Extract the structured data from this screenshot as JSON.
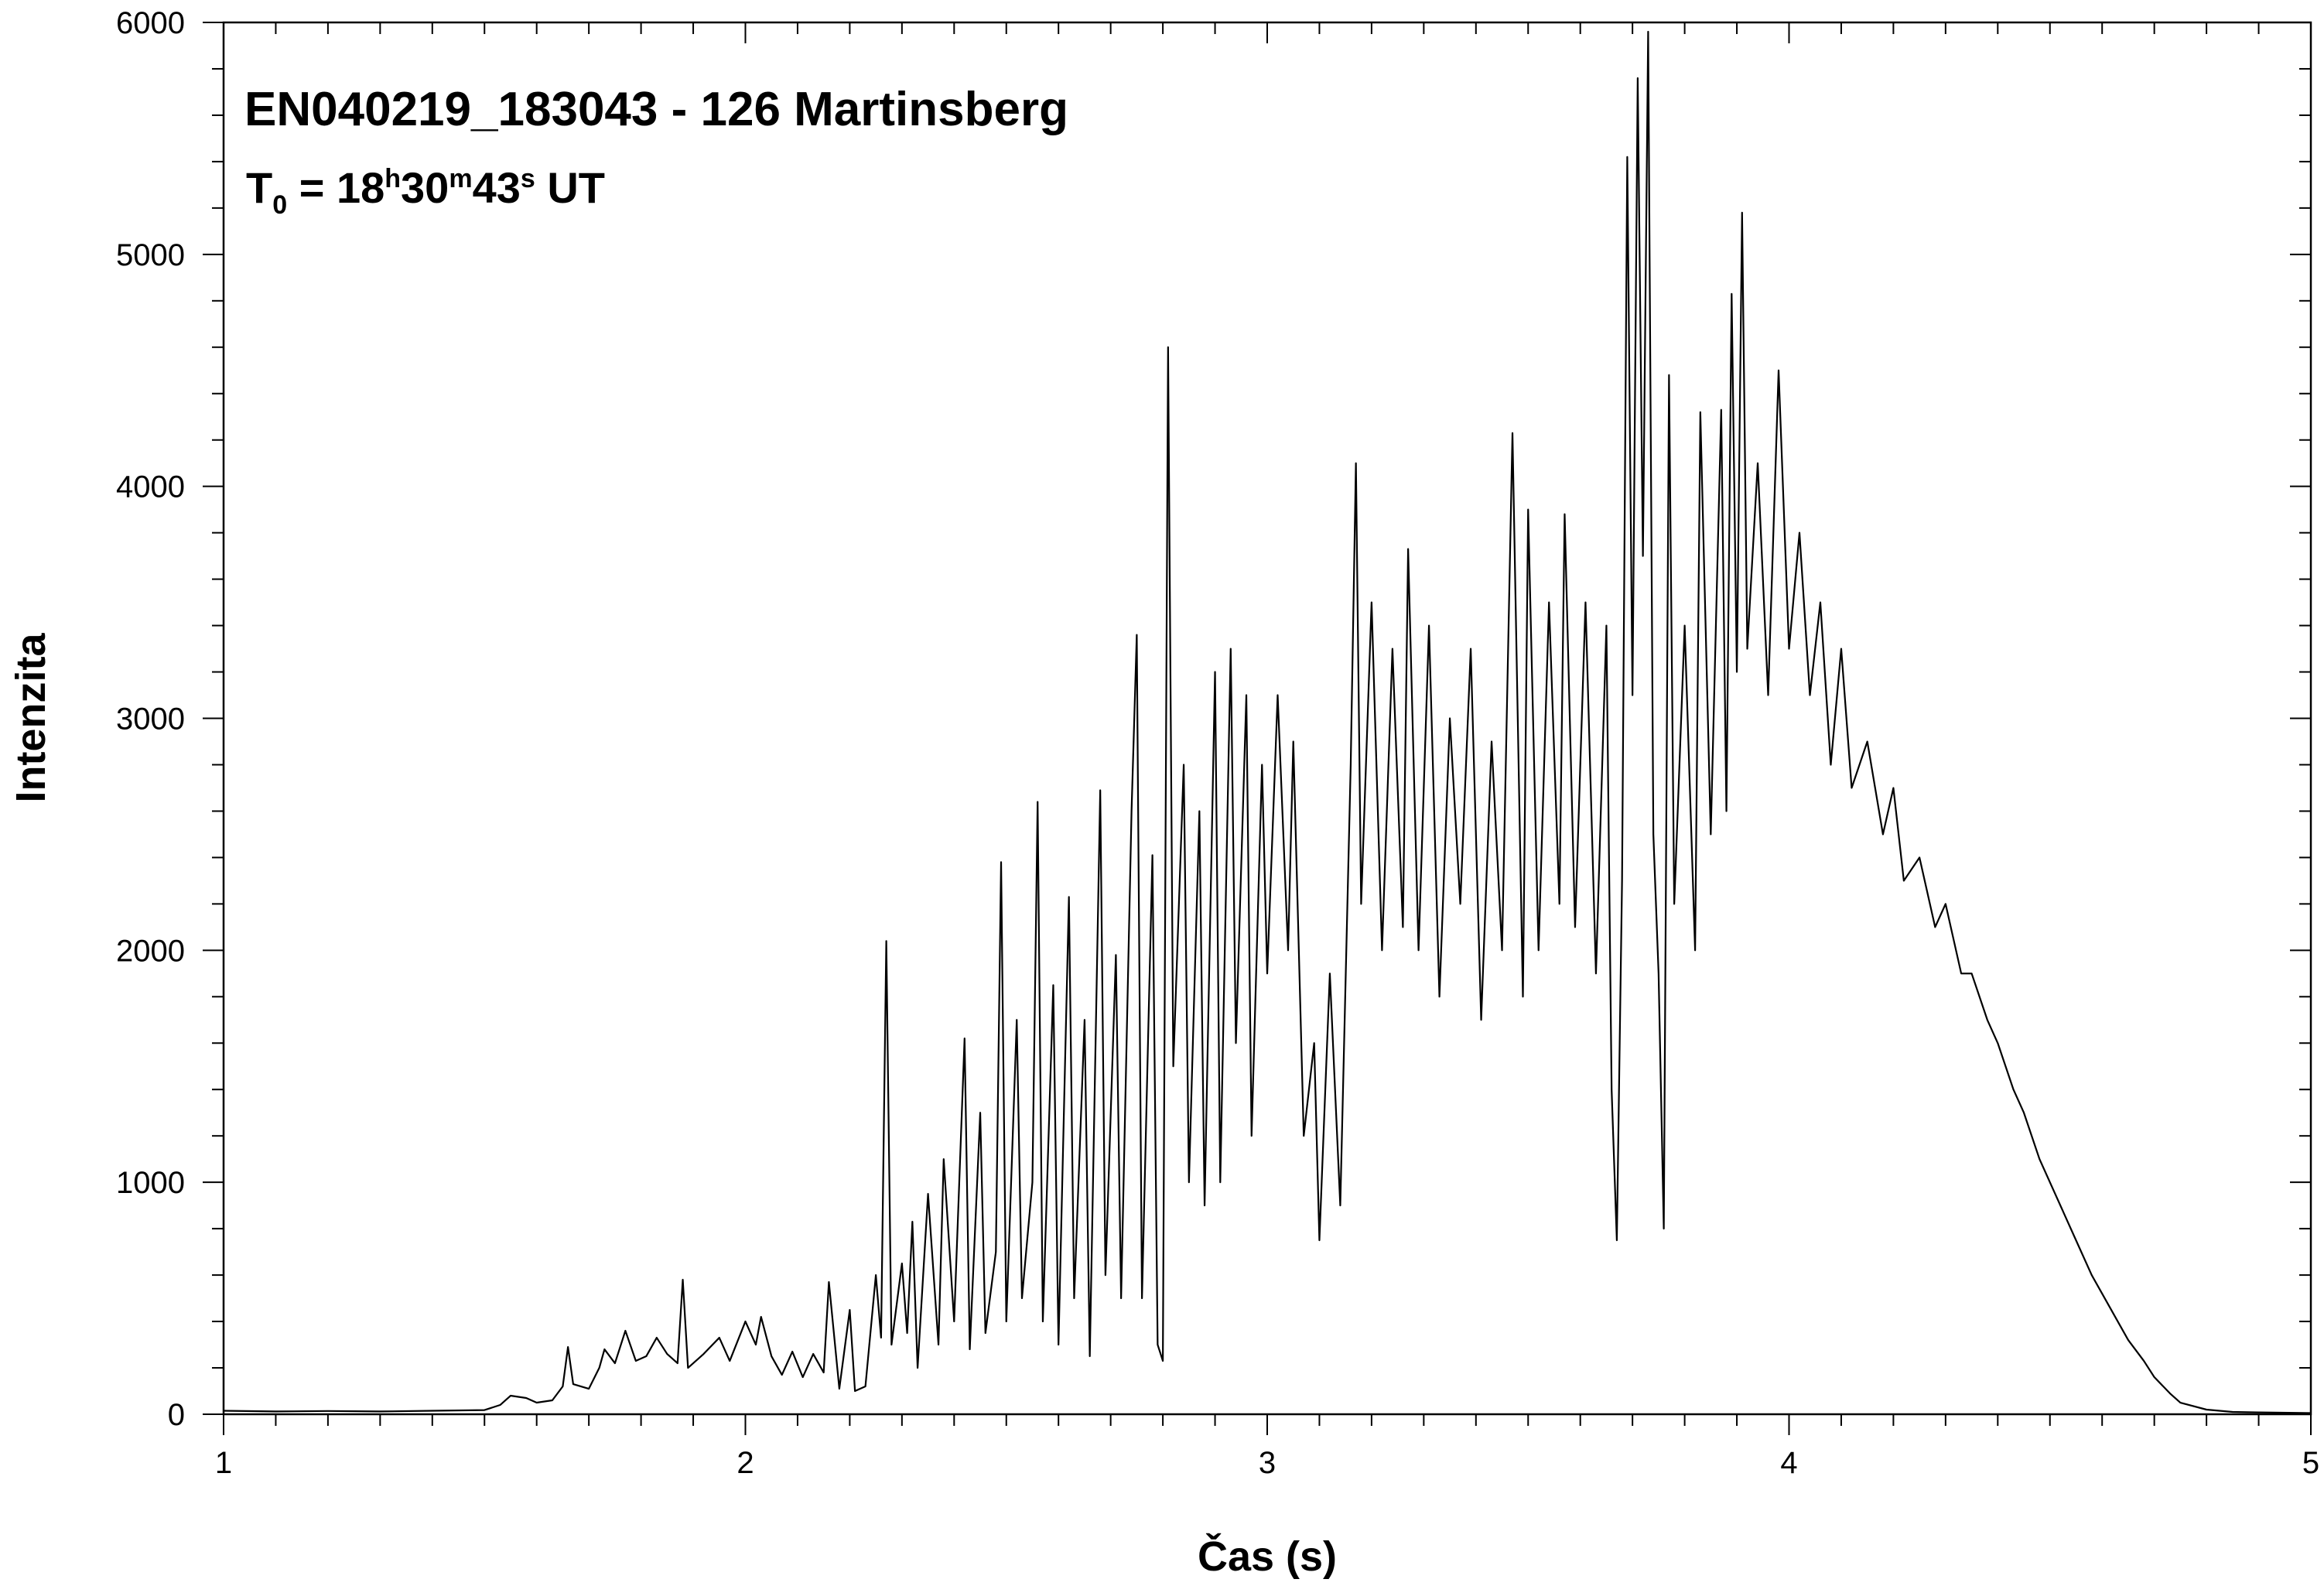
{
  "chart_data": {
    "type": "line",
    "title": "EN040219_183043 - 126 Martinsberg",
    "subtitle": [
      "T",
      "0",
      " = 18",
      "h",
      "30",
      "m",
      "43",
      "s",
      " UT"
    ],
    "xlabel": "Čas (s)",
    "ylabel": "Intenzita",
    "xlim": [
      1,
      5
    ],
    "ylim": [
      0,
      6000
    ],
    "xticks": [
      1,
      2,
      3,
      4,
      5
    ],
    "yticks": [
      0,
      1000,
      2000,
      3000,
      4000,
      5000,
      6000
    ],
    "xminorticks": [
      1.1,
      1.2,
      1.3,
      1.4,
      1.5,
      1.6,
      1.7,
      1.8,
      1.9,
      2.1,
      2.2,
      2.3,
      2.4,
      2.5,
      2.6,
      2.7,
      2.8,
      2.9,
      3.1,
      3.2,
      3.3,
      3.4,
      3.5,
      3.6,
      3.7,
      3.8,
      3.9,
      4.1,
      4.2,
      4.3,
      4.4,
      4.5,
      4.6,
      4.7,
      4.8,
      4.9
    ],
    "yminorticks": [
      200,
      400,
      600,
      800,
      1200,
      1400,
      1600,
      1800,
      2200,
      2400,
      2600,
      2800,
      3200,
      3400,
      3600,
      3800,
      4200,
      4400,
      4600,
      4800,
      5200,
      5400,
      5600,
      5800
    ],
    "color": "#000000",
    "x": [
      1.0,
      1.1,
      1.2,
      1.3,
      1.4,
      1.5,
      1.53,
      1.55,
      1.58,
      1.6,
      1.63,
      1.65,
      1.66,
      1.67,
      1.7,
      1.72,
      1.73,
      1.75,
      1.77,
      1.79,
      1.81,
      1.83,
      1.85,
      1.87,
      1.88,
      1.89,
      1.92,
      1.95,
      1.97,
      2.0,
      2.02,
      2.03,
      2.05,
      2.07,
      2.09,
      2.11,
      2.13,
      2.15,
      2.16,
      2.18,
      2.2,
      2.21,
      2.23,
      2.25,
      2.26,
      2.27,
      2.28,
      2.3,
      2.31,
      2.32,
      2.33,
      2.35,
      2.37,
      2.38,
      2.4,
      2.42,
      2.43,
      2.45,
      2.46,
      2.48,
      2.49,
      2.5,
      2.52,
      2.53,
      2.55,
      2.56,
      2.57,
      2.59,
      2.6,
      2.62,
      2.63,
      2.65,
      2.66,
      2.68,
      2.69,
      2.71,
      2.72,
      2.74,
      2.75,
      2.76,
      2.78,
      2.79,
      2.8,
      2.81,
      2.82,
      2.84,
      2.85,
      2.87,
      2.88,
      2.9,
      2.91,
      2.93,
      2.94,
      2.96,
      2.97,
      2.99,
      3.0,
      3.02,
      3.04,
      3.05,
      3.07,
      3.09,
      3.1,
      3.12,
      3.14,
      3.16,
      3.17,
      3.18,
      3.2,
      3.22,
      3.24,
      3.26,
      3.27,
      3.29,
      3.31,
      3.33,
      3.35,
      3.37,
      3.39,
      3.41,
      3.43,
      3.45,
      3.47,
      3.49,
      3.5,
      3.52,
      3.54,
      3.56,
      3.57,
      3.59,
      3.61,
      3.63,
      3.65,
      3.66,
      3.67,
      3.68,
      3.69,
      3.7,
      3.71,
      3.72,
      3.73,
      3.74,
      3.75,
      3.76,
      3.77,
      3.78,
      3.8,
      3.82,
      3.83,
      3.85,
      3.87,
      3.88,
      3.89,
      3.9,
      3.91,
      3.92,
      3.94,
      3.96,
      3.98,
      4.0,
      4.02,
      4.04,
      4.06,
      4.08,
      4.1,
      4.12,
      4.15,
      4.18,
      4.2,
      4.22,
      4.25,
      4.28,
      4.3,
      4.33,
      4.35,
      4.38,
      4.4,
      4.43,
      4.45,
      4.48,
      4.5,
      4.53,
      4.55,
      4.58,
      4.6,
      4.63,
      4.65,
      4.68,
      4.7,
      4.73,
      4.75,
      4.8,
      4.85,
      4.9,
      5.0
    ],
    "values": [
      15,
      12,
      14,
      12,
      15,
      18,
      40,
      80,
      70,
      50,
      60,
      120,
      290,
      130,
      110,
      200,
      280,
      220,
      360,
      230,
      250,
      330,
      260,
      220,
      580,
      200,
      260,
      330,
      230,
      400,
      300,
      420,
      250,
      170,
      270,
      160,
      260,
      180,
      570,
      110,
      450,
      100,
      120,
      600,
      330,
      2040,
      300,
      650,
      350,
      830,
      200,
      950,
      300,
      1100,
      400,
      1620,
      280,
      1300,
      350,
      700,
      2380,
      400,
      1700,
      500,
      1000,
      2640,
      400,
      1850,
      300,
      2230,
      500,
      1700,
      250,
      2690,
      600,
      1980,
      500,
      2600,
      3360,
      500,
      2410,
      300,
      230,
      4600,
      1500,
      2800,
      1000,
      2600,
      900,
      3200,
      1000,
      3300,
      1600,
      3100,
      1200,
      2800,
      1900,
      3100,
      2000,
      2900,
      1200,
      1600,
      750,
      1900,
      900,
      2800,
      4100,
      2200,
      3500,
      2000,
      3300,
      2100,
      3730,
      2000,
      3400,
      1800,
      3000,
      2200,
      3300,
      1700,
      2900,
      2000,
      4230,
      1800,
      3900,
      2000,
      3500,
      2200,
      3880,
      2100,
      3500,
      1900,
      3400,
      1400,
      750,
      2300,
      5420,
      3100,
      5760,
      3700,
      5960,
      2500,
      1900,
      800,
      4480,
      2200,
      3400,
      2000,
      4320,
      2500,
      4330,
      2600,
      4830,
      3200,
      5180,
      3300,
      4100,
      3100,
      4500,
      3300,
      3800,
      3100,
      3500,
      2800,
      3300,
      2700,
      2900,
      2500,
      2700,
      2300,
      2400,
      2100,
      2200,
      1900,
      1900,
      1700,
      1600,
      1400,
      1300,
      1100,
      1000,
      850,
      750,
      600,
      520,
      400,
      320,
      230,
      160,
      90,
      50,
      20,
      10,
      8,
      5
    ]
  }
}
